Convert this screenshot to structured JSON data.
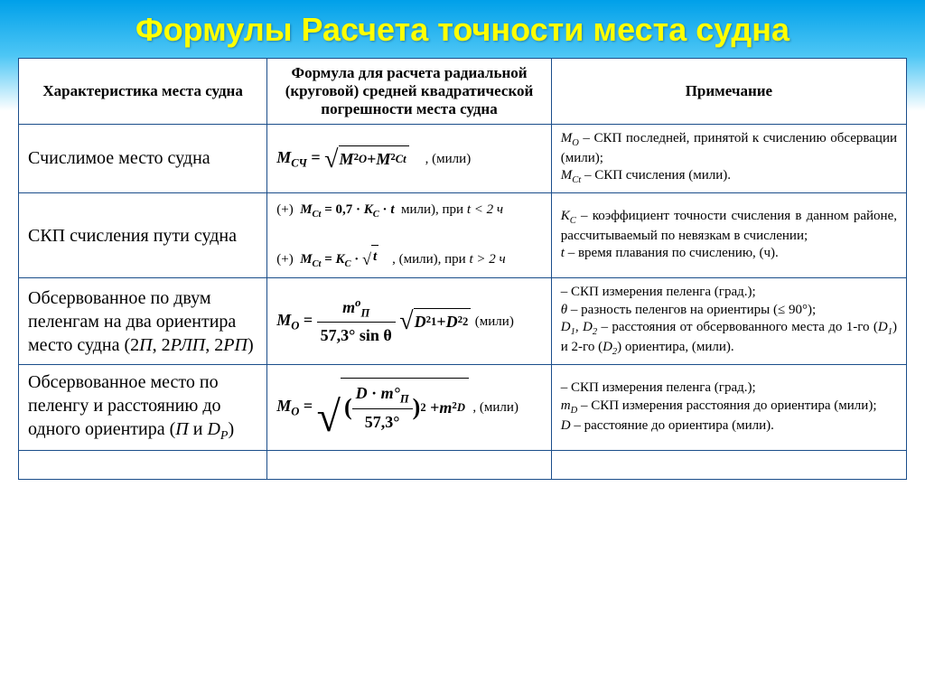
{
  "title": "Формулы Расчета точности места судна",
  "headers": {
    "col1": "Характеристика места судна",
    "col2": "Формула для расчета радиальной (круговой) средней квадратической погрешности места судна",
    "col3": "Примечание"
  },
  "rows": [
    {
      "char": "Счислимое место судна",
      "formula_lead": "M",
      "formula_sub": "СЧ",
      "formula_body": "M²<sub>O</sub> + M²<sub>Ct</sub>",
      "unit": ", (мили)",
      "note_html": "<span class='italic'>M<sub>O</sub></span> – СКП последней, принятой к счислению обсервации (мили);<br><span class='italic'>M<sub>Ct</sub></span> – СКП счисления (мили)."
    },
    {
      "char": "СКП счисления пути судна",
      "line1_pre": "(+)",
      "line1_formula": "M<sub>Ct</sub> = 0,7 · K<sub>C</sub> · t",
      "line1_unit": "мили), при",
      "line1_cond": "t < 2 ч",
      "line2_pre": "(+)",
      "line2_formula": "M<sub>Ct</sub> = K<sub>C</sub> · √t",
      "line2_unit": ", (мили), при",
      "line2_cond": "t > 2 ч",
      "note_html": "<span class='italic'>K<sub>C</sub></span> – коэффициент точности счисления в данном районе, рассчитываемый по невязкам в счислении;<br><span class='italic'>t</span> – время плавания по счислению, (ч)."
    },
    {
      "char_html": "Обсервованное по двум пеленгам на два ориентира место судна (2<span class='italic'>П</span>, 2<span class='italic'>РЛП</span>, 2<span class='italic'>РП</span>)",
      "lhs": "M<sub>O</sub> =",
      "frac_num": "m<sup>o</sup><sub>П</sub>",
      "frac_den": "57,3° sin θ",
      "sqrt_body": "D²<sub>1</sub> + D²<sub>2</sub>",
      "unit": "(мили)",
      "note_html": "– СКП измерения пеленга (град.);<br><span class='italic'>θ</span> – разность пеленгов на ориентиры (≤ 90°);<br><span class='italic'>D<sub>1</sub></span>, <span class='italic'>D<sub>2</sub></span> – расстояния от обсерво­ванного места до 1-го (<span class='italic'>D<sub>1</sub></span>) и 2-го (<span class='italic'>D<sub>2</sub></span>) ориентира, (мили)."
    },
    {
      "char_html": "Обсервованное место по пеленгу и расстоянию до одного ориентира (<span class='italic'>П</span> и <span class='italic'>D<sub>P</sub></span>)",
      "lhs": "M<sub>O</sub> =",
      "inner_num": "D · m°<sub>П</sub>",
      "inner_den": "57,3°",
      "tail": "+ m²<sub>D</sub>",
      "unit": ", (мили)",
      "note_html": "– СКП измерения пеленга (град.);<br><span class='italic'>m<sub>D</sub></span> – СКП измерения расстояния до ориентира (мили);<br><span class='italic'>D</span> – расстояние до ориентира (мили)."
    }
  ],
  "colors": {
    "title": "#ffff00",
    "border": "#1a4d8a",
    "bg_top": "#00a0e9"
  }
}
